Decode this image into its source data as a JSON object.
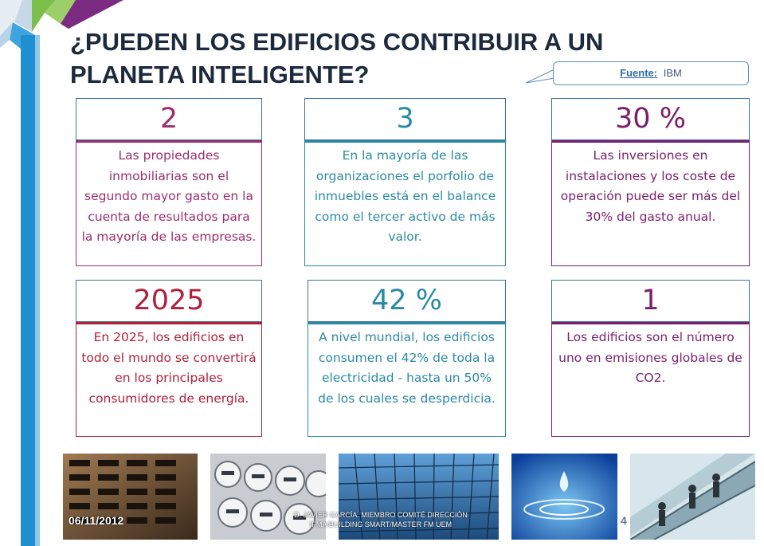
{
  "title": "¿PUEDEN LOS EDIFICIOS CONTRIBUIR A UN PLANETA INTELIGENTE?",
  "source": {
    "label": "Fuente:",
    "value": "IBM"
  },
  "cards": [
    {
      "value": "2",
      "text": "Las propiedades inmobiliarias son el segundo mayor gasto en la cuenta de resultados para la mayoría de las empresas.",
      "color": "#9b2e6d"
    },
    {
      "value": "3",
      "text": "En la mayoría de las organizaciones el porfolio de inmuebles está en el balance como el tercer activo de más valor.",
      "color": "#2b8aa3"
    },
    {
      "value": "30 %",
      "text": "Las inversiones en instalaciones y los coste de operación puede  ser más del 30% del  gasto anual.",
      "color": "#7a1f6c"
    },
    {
      "value": "2025",
      "text": "En 2025, los edificios en todo el mundo se convertirá en los principales consumidores de energía.",
      "color": "#b0203a"
    },
    {
      "value": "42 %",
      "text": "A nivel mundial, los edificios consumen el 42% de toda la electricidad - hasta un 50% de los cuales se desperdicia.",
      "color": "#2b8aa3"
    },
    {
      "value": "1",
      "text": "Los edificios son el número uno en emisiones globales de CO2.",
      "color": "#7a1f6c"
    }
  ],
  "footer": {
    "date": "06/11/2012",
    "presenter": "D. JAVIER GARCÍA. MIEMBRO COMITÉ DIRECCIÓN IFMA/BUILDING SMART/MASTER FM UEM",
    "page": "4"
  },
  "photos": [
    "building-facade-photo",
    "electricity-meters-photo",
    "glass-skyscraper-photo",
    "water-drop-photo",
    "escalator-people-photo"
  ]
}
